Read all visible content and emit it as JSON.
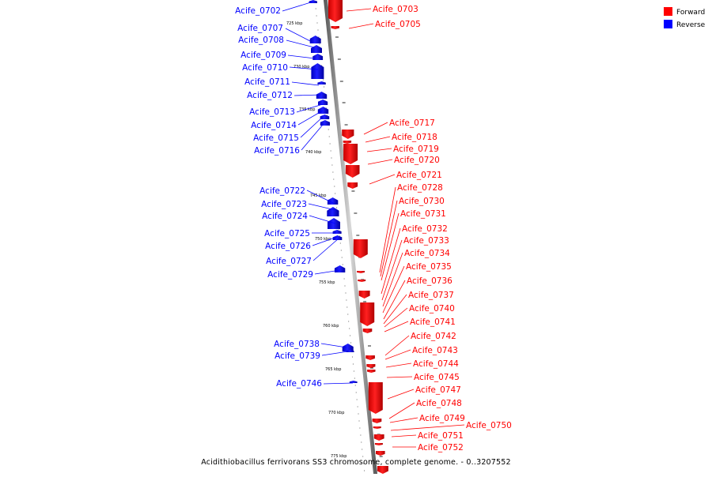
{
  "legend": {
    "forward": {
      "label": "Forward",
      "color": "#ff0000"
    },
    "reverse": {
      "label": "Reverse",
      "color": "#0000ff"
    }
  },
  "caption": "Acidithiobacillus ferrivorans SS3 chromosome, complete genome. - 0..3207552",
  "ruler": [
    "725 kbp",
    "730 kbp",
    "735 kbp",
    "740 kbp",
    "745 kbp",
    "750 kbp",
    "755 kbp",
    "760 kbp",
    "765 kbp",
    "770 kbp",
    "775 kbp"
  ],
  "reverse_genes": [
    "Acife_0702",
    "Acife_0707",
    "Acife_0708",
    "Acife_0709",
    "Acife_0710",
    "Acife_0711",
    "Acife_0712",
    "Acife_0713",
    "Acife_0714",
    "Acife_0715",
    "Acife_0716",
    "Acife_0722",
    "Acife_0723",
    "Acife_0724",
    "Acife_0725",
    "Acife_0726",
    "Acife_0727",
    "Acife_0729",
    "Acife_0738",
    "Acife_0739",
    "Acife_0746"
  ],
  "forward_genes": [
    "Acife_0703",
    "Acife_0705",
    "Acife_0717",
    "Acife_0718",
    "Acife_0719",
    "Acife_0720",
    "Acife_0721",
    "Acife_0728",
    "Acife_0730",
    "Acife_0731",
    "Acife_0732",
    "Acife_0733",
    "Acife_0734",
    "Acife_0735",
    "Acife_0736",
    "Acife_0737",
    "Acife_0740",
    "Acife_0741",
    "Acife_0742",
    "Acife_0743",
    "Acife_0744",
    "Acife_0745",
    "Acife_0747",
    "Acife_0748",
    "Acife_0749",
    "Acife_0750",
    "Acife_0751",
    "Acife_0752"
  ]
}
